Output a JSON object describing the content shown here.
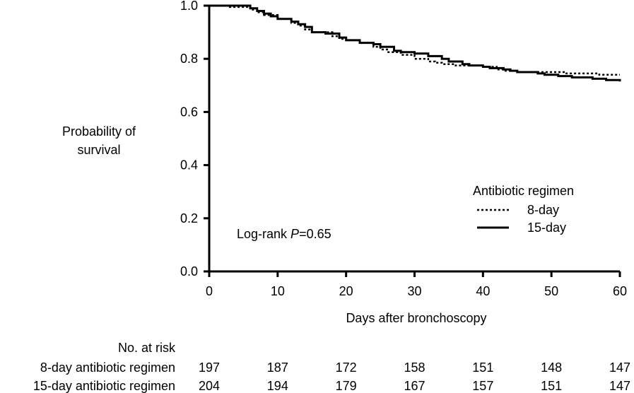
{
  "chart_data": {
    "type": "line",
    "subtype": "kaplan-meier step",
    "xlabel": "Days after bronchoscopy",
    "ylabel_lines": [
      "Probability of",
      "survival"
    ],
    "xlim": [
      0,
      60
    ],
    "ylim": [
      0,
      1.0
    ],
    "x_ticks": [
      0,
      10,
      20,
      30,
      40,
      50,
      60
    ],
    "y_ticks": [
      0.0,
      0.2,
      0.4,
      0.6,
      0.8,
      1.0
    ],
    "x_tick_labels": [
      "0",
      "10",
      "20",
      "30",
      "40",
      "50",
      "60"
    ],
    "y_tick_labels": [
      "0.0",
      "0.2",
      "0.4",
      "0.6",
      "0.8",
      "1.0"
    ],
    "grid": false,
    "legend": {
      "title": "Antibiotic regimen",
      "placement": "right",
      "entries": [
        "8-day",
        "15-day"
      ]
    },
    "annotation": {
      "prefix": "Log-rank ",
      "italic": "P",
      "suffix": "=0.65"
    },
    "series": [
      {
        "name": "8-day",
        "style": "dotted",
        "color": "#000000",
        "points": [
          [
            0,
            1.0
          ],
          [
            3,
            0.995
          ],
          [
            6,
            0.985
          ],
          [
            7,
            0.975
          ],
          [
            8,
            0.965
          ],
          [
            10,
            0.95
          ],
          [
            12,
            0.935
          ],
          [
            13,
            0.925
          ],
          [
            14,
            0.91
          ],
          [
            15,
            0.9
          ],
          [
            18,
            0.885
          ],
          [
            19,
            0.875
          ],
          [
            20,
            0.87
          ],
          [
            22,
            0.86
          ],
          [
            24,
            0.845
          ],
          [
            25,
            0.835
          ],
          [
            26,
            0.825
          ],
          [
            28,
            0.815
          ],
          [
            30,
            0.8
          ],
          [
            32,
            0.79
          ],
          [
            33,
            0.785
          ],
          [
            34,
            0.78
          ],
          [
            36,
            0.775
          ],
          [
            38,
            0.775
          ],
          [
            40,
            0.77
          ],
          [
            42,
            0.76
          ],
          [
            43,
            0.755
          ],
          [
            45,
            0.75
          ],
          [
            48,
            0.75
          ],
          [
            52,
            0.745
          ],
          [
            56,
            0.745
          ],
          [
            57,
            0.74
          ],
          [
            60,
            0.74
          ]
        ]
      },
      {
        "name": "15-day",
        "style": "solid",
        "color": "#000000",
        "points": [
          [
            0,
            1.0
          ],
          [
            6,
            0.99
          ],
          [
            7,
            0.98
          ],
          [
            8,
            0.97
          ],
          [
            9,
            0.96
          ],
          [
            10,
            0.95
          ],
          [
            12,
            0.94
          ],
          [
            13,
            0.93
          ],
          [
            14,
            0.92
          ],
          [
            15,
            0.9
          ],
          [
            17,
            0.895
          ],
          [
            19,
            0.88
          ],
          [
            20,
            0.87
          ],
          [
            22,
            0.86
          ],
          [
            24,
            0.855
          ],
          [
            25,
            0.845
          ],
          [
            27,
            0.83
          ],
          [
            28,
            0.825
          ],
          [
            30,
            0.82
          ],
          [
            31,
            0.82
          ],
          [
            32,
            0.81
          ],
          [
            34,
            0.8
          ],
          [
            35,
            0.79
          ],
          [
            37,
            0.78
          ],
          [
            38,
            0.775
          ],
          [
            40,
            0.77
          ],
          [
            41,
            0.765
          ],
          [
            43,
            0.76
          ],
          [
            44,
            0.755
          ],
          [
            45,
            0.75
          ],
          [
            48,
            0.745
          ],
          [
            49,
            0.74
          ],
          [
            51,
            0.735
          ],
          [
            53,
            0.73
          ],
          [
            56,
            0.725
          ],
          [
            58,
            0.72
          ],
          [
            60,
            0.715
          ]
        ]
      }
    ],
    "risk_table": {
      "header": "No. at risk",
      "times": [
        0,
        10,
        20,
        30,
        40,
        50,
        60
      ],
      "rows": [
        {
          "label": "8-day antibiotic regimen",
          "counts": [
            "197",
            "187",
            "172",
            "158",
            "151",
            "148",
            "147"
          ]
        },
        {
          "label": "15-day antibiotic regimen",
          "counts": [
            "204",
            "194",
            "179",
            "167",
            "157",
            "151",
            "147"
          ]
        }
      ]
    }
  }
}
